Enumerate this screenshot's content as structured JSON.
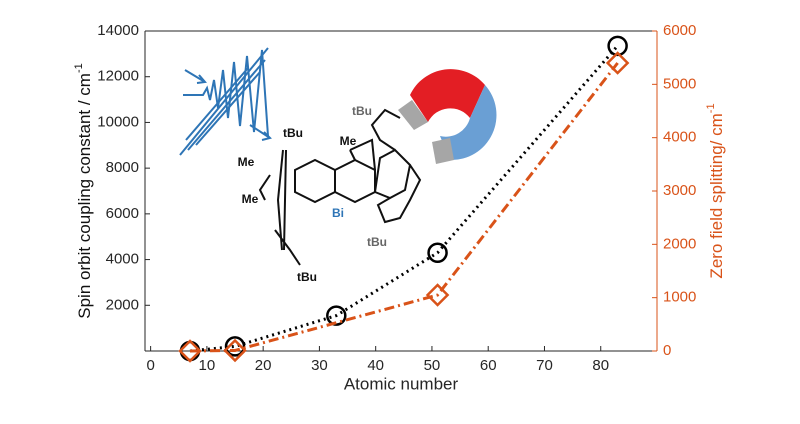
{
  "chart_data": {
    "type": "line",
    "xlabel": "Atomic number",
    "ylabel": "Spin orbit coupling constant / cm",
    "ylabel_sup": "-1",
    "y2label": "Zero field splitting/ cm",
    "y2label_sup": "-1",
    "xlim": [
      -1,
      90
    ],
    "xticks": [
      0,
      10,
      20,
      30,
      40,
      50,
      60,
      70,
      80
    ],
    "ylim": [
      0,
      14000
    ],
    "yticks": [
      2000,
      4000,
      6000,
      8000,
      10000,
      12000,
      14000
    ],
    "y2lim": [
      0,
      6000
    ],
    "y2ticks": [
      0,
      1000,
      2000,
      3000,
      4000,
      5000,
      6000
    ],
    "series": [
      {
        "color": "#000000",
        "marker": "circle",
        "x": [
          7,
          15,
          33,
          51,
          83
        ],
        "values": [
          0,
          200,
          1550,
          4300,
          13350
        ]
      },
      {
        "color": "#d95319",
        "marker": "diamond",
        "axis": "y2",
        "x": [
          7,
          15,
          51,
          83
        ],
        "values": [
          0,
          10,
          1050,
          5400
        ]
      }
    ],
    "annotations": [
      "tBu",
      "tBu",
      "tBu",
      "tBu",
      "Me",
      "Me",
      "Me",
      "Bi"
    ]
  }
}
